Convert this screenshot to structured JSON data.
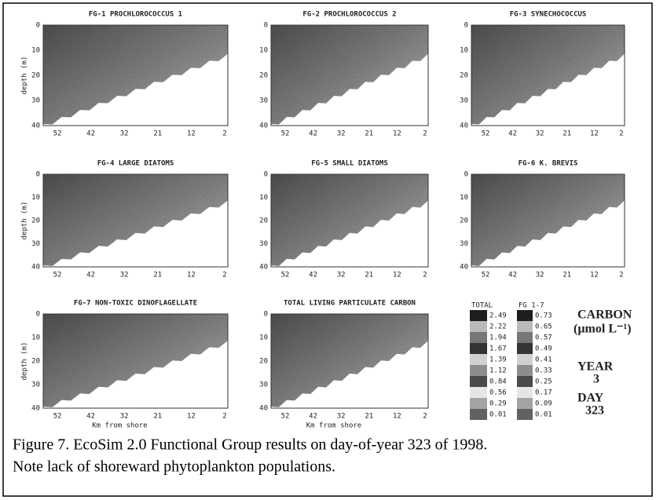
{
  "panels": [
    {
      "title": "FG-1 PROCHLOROCOCCUS 1",
      "ylabel": "depth (m)",
      "yticks": [
        "0",
        "10",
        "20",
        "30",
        "40"
      ],
      "xticks": [
        "52",
        "42",
        "32",
        "21",
        "12",
        "2"
      ]
    },
    {
      "title": "FG-2 PROCHLOROCOCCUS 2",
      "yticks": [
        "0",
        "10",
        "20",
        "30",
        "40"
      ],
      "xticks": [
        "52",
        "42",
        "32",
        "21",
        "12",
        "2"
      ]
    },
    {
      "title": "FG-3 SYNECHOCOCCUS",
      "yticks": [
        "0",
        "10",
        "20",
        "30",
        "40"
      ],
      "xticks": [
        "52",
        "42",
        "32",
        "21",
        "12",
        "2"
      ]
    },
    {
      "title": "FG-4 LARGE DIATOMS",
      "ylabel": "depth (m)",
      "yticks": [
        "0",
        "10",
        "20",
        "30",
        "40"
      ],
      "xticks": [
        "52",
        "42",
        "32",
        "21",
        "12",
        "2"
      ]
    },
    {
      "title": "FG-5 SMALL DIATOMS",
      "yticks": [
        "0",
        "10",
        "20",
        "30",
        "40"
      ],
      "xticks": [
        "52",
        "42",
        "32",
        "21",
        "12",
        "2"
      ]
    },
    {
      "title": "FG-6 K. BREVIS",
      "yticks": [
        "0",
        "10",
        "20",
        "30",
        "40"
      ],
      "xticks": [
        "52",
        "42",
        "32",
        "21",
        "12",
        "2"
      ]
    },
    {
      "title": "FG-7 NON-TOXIC DINOFLAGELLATE",
      "ylabel": "depth (m)",
      "xlabel": "Km from shore",
      "yticks": [
        "0",
        "10",
        "20",
        "30",
        "40"
      ],
      "xticks": [
        "52",
        "42",
        "32",
        "21",
        "12",
        "2"
      ]
    },
    {
      "title": "TOTAL LIVING PARTICULATE CARBON",
      "xlabel": "Km from shore",
      "yticks": [
        "0",
        "10",
        "20",
        "30",
        "40"
      ],
      "xticks": [
        "52",
        "42",
        "32",
        "21",
        "12",
        "2"
      ]
    }
  ],
  "legend": {
    "total_header": "TOTAL",
    "fg_header": "FG 1-7",
    "total_labels": [
      "2.49",
      "2.22",
      "1.94",
      "1.67",
      "1.39",
      "1.12",
      "0.84",
      "0.56",
      "0.29",
      "0.01"
    ],
    "fg_labels": [
      "0.73",
      "0.65",
      "0.57",
      "0.49",
      "0.41",
      "0.33",
      "0.25",
      "0.17",
      "0.09",
      "0.01"
    ],
    "unit_title": "CARBON",
    "unit": "(µmol L⁻¹)",
    "year_label": "YEAR",
    "year": "3",
    "day_label": "DAY",
    "day": "323"
  },
  "caption": {
    "line1": "Figure 7. EcoSim 2.0 Functional Group results on day-of-year 323 of 1998.",
    "line2": "Note lack of shoreward phytoplankton populations."
  }
}
